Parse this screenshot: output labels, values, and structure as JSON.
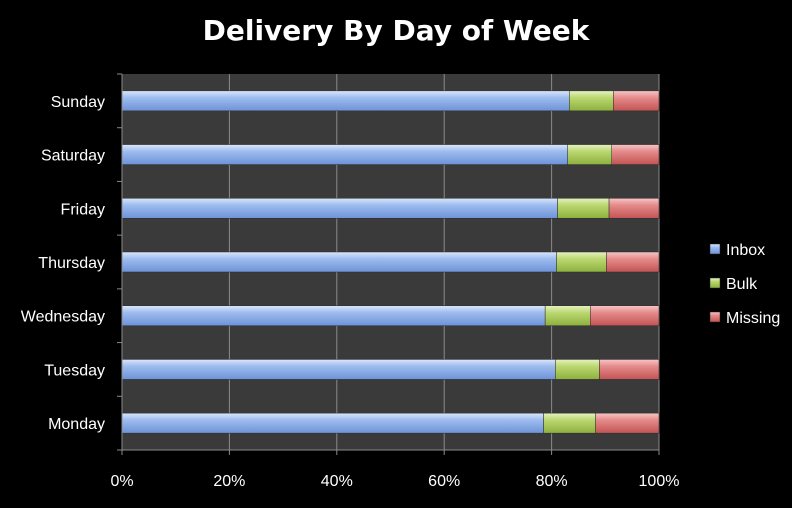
{
  "title": "Delivery By Day of Week",
  "colors": {
    "background": "#000000",
    "plot_area": "#3a3a3a",
    "inbox": "#8fb0e8",
    "bulk": "#b5d56a",
    "missing": "#e07a7a"
  },
  "chart_data": {
    "type": "bar",
    "orientation": "horizontal",
    "stacked": "percent",
    "title": "Delivery By Day of Week",
    "categories": [
      "Monday",
      "Tuesday",
      "Wednesday",
      "Thursday",
      "Friday",
      "Saturday",
      "Sunday"
    ],
    "series": [
      {
        "name": "Inbox",
        "values": [
          78.5,
          80.7,
          78.8,
          80.9,
          81.1,
          83.0,
          83.3
        ]
      },
      {
        "name": "Bulk",
        "values": [
          9.7,
          8.2,
          8.4,
          9.3,
          9.6,
          8.2,
          8.2
        ]
      },
      {
        "name": "Missing",
        "values": [
          11.8,
          11.1,
          12.8,
          9.8,
          9.3,
          8.8,
          8.5
        ]
      }
    ],
    "xlim": [
      0,
      100
    ],
    "xticks": [
      "0%",
      "20%",
      "40%",
      "60%",
      "80%",
      "100%"
    ],
    "grid": true,
    "legend_position": "right"
  }
}
